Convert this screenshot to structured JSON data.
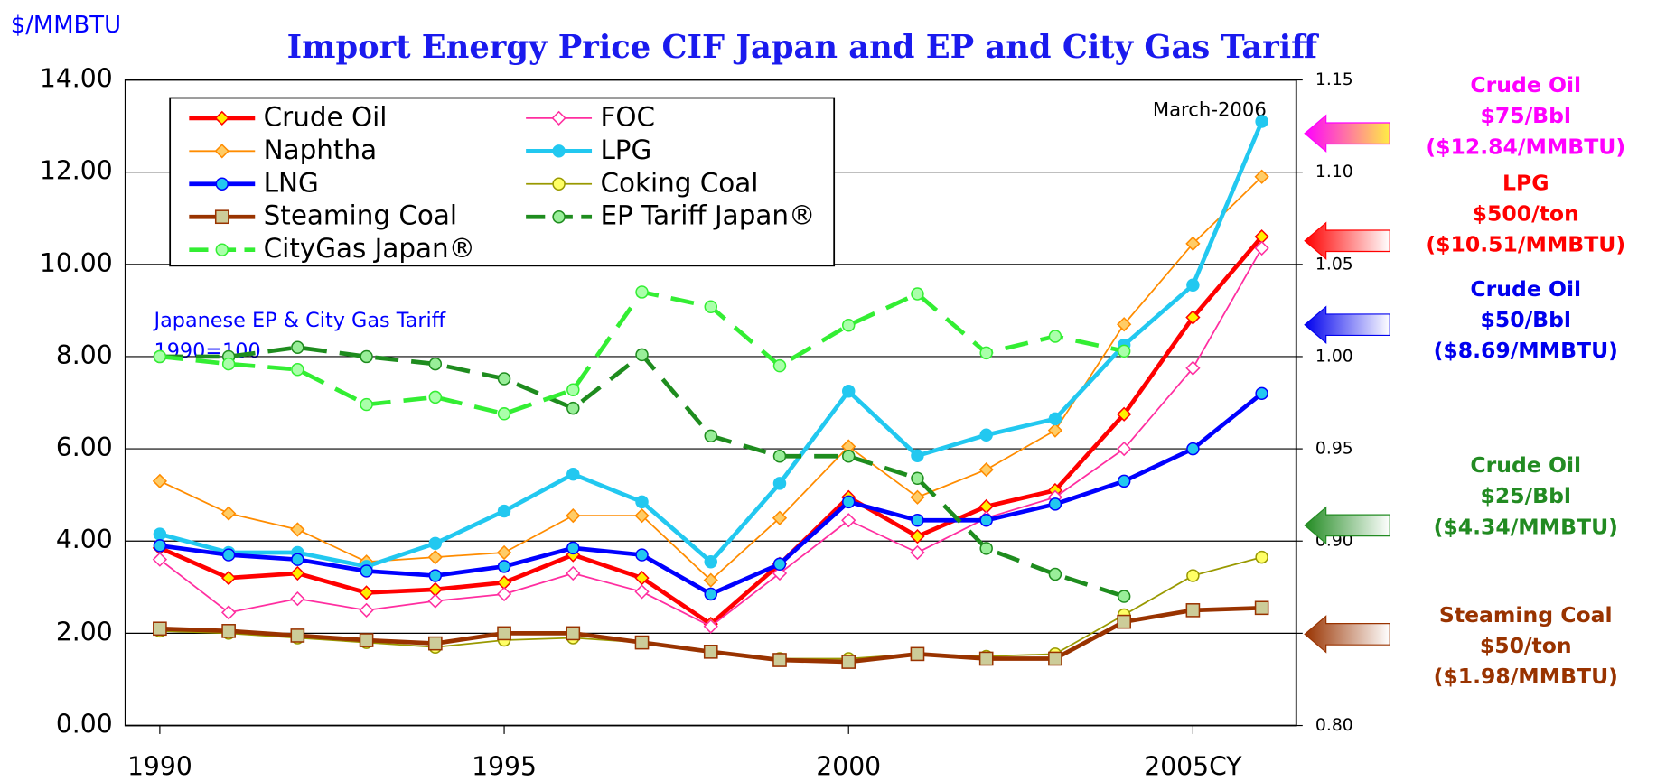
{
  "chart_data": {
    "type": "line",
    "title": "Import Energy Price CIF Japan and  EP and City Gas Tariff",
    "y_label": "$/MMBTU",
    "xlim": [
      1989.5,
      2006.5
    ],
    "xticks": [
      1990,
      1995,
      2000,
      {
        "value": 2005,
        "label": "2005CY"
      }
    ],
    "ylim": [
      0,
      14
    ],
    "yticks": [
      {
        "value": 0,
        "label": "0.00"
      },
      {
        "value": 2,
        "label": "2.00"
      },
      {
        "value": 4,
        "label": "4.00"
      },
      {
        "value": 6,
        "label": "6.00"
      },
      {
        "value": 8,
        "label": "8.00"
      },
      {
        "value": 10,
        "label": "10.00"
      },
      {
        "value": 12,
        "label": "12.00"
      },
      {
        "value": 14,
        "label": "14.00"
      }
    ],
    "y2lim": [
      0.8,
      1.15
    ],
    "y2ticks": [
      {
        "value": 0.8,
        "label": "0.80"
      },
      0.85,
      {
        "value": 0.9,
        "label": "0.90"
      },
      0.95,
      {
        "value": 1.0,
        "label": "1.00"
      },
      1.05,
      {
        "value": 1.1,
        "label": "1.10"
      },
      1.15
    ],
    "grid": true,
    "legend": "upper left",
    "x": [
      1990,
      1991,
      1992,
      1993,
      1994,
      1995,
      1996,
      1997,
      1998,
      1999,
      2000,
      2001,
      2002,
      2003,
      2004,
      2005,
      2006
    ],
    "series": [
      {
        "name": "Crude Oil",
        "color": "#ff0000",
        "marker": "diamond",
        "marker_fill": "#ffee00",
        "style": "thick",
        "values": [
          3.85,
          3.2,
          3.3,
          2.88,
          2.95,
          3.1,
          3.7,
          3.2,
          2.2,
          3.5,
          4.95,
          4.1,
          4.75,
          5.1,
          6.75,
          8.85,
          10.6
        ]
      },
      {
        "name": "FOC",
        "color": "#ff2ea0",
        "marker": "diamond",
        "marker_fill": "#ffffff",
        "style": "thin",
        "values": [
          3.6,
          2.45,
          2.75,
          2.5,
          2.7,
          2.85,
          3.3,
          2.9,
          2.15,
          3.3,
          4.45,
          3.75,
          4.5,
          4.95,
          6.0,
          7.75,
          10.35
        ]
      },
      {
        "name": "Naphtha",
        "color": "#ff8c00",
        "marker": "diamond",
        "marker_fill": "#ffcc66",
        "style": "thin",
        "values": [
          5.3,
          4.6,
          4.25,
          3.55,
          3.65,
          3.75,
          4.55,
          4.55,
          3.15,
          4.5,
          6.05,
          4.95,
          5.55,
          6.4,
          8.7,
          10.45,
          11.9
        ]
      },
      {
        "name": "LPG",
        "color": "#22c8f0",
        "marker": "circle",
        "marker_fill": "#22c8f0",
        "style": "thick",
        "values": [
          4.15,
          3.75,
          3.75,
          3.45,
          3.95,
          4.65,
          5.45,
          4.85,
          3.55,
          5.25,
          7.25,
          5.85,
          6.3,
          6.65,
          8.25,
          9.55,
          13.1
        ]
      },
      {
        "name": "LNG",
        "color": "#0000ff",
        "marker": "circle",
        "marker_fill": "#22c8f0",
        "style": "thick",
        "values": [
          3.9,
          3.7,
          3.6,
          3.35,
          3.25,
          3.45,
          3.85,
          3.7,
          2.85,
          3.5,
          4.85,
          4.45,
          4.45,
          4.8,
          5.3,
          6.0,
          7.2
        ]
      },
      {
        "name": "Coking Coal",
        "color": "#999900",
        "marker": "circle",
        "marker_fill": "#ffff66",
        "style": "thin",
        "values": [
          2.05,
          2.0,
          1.9,
          1.8,
          1.7,
          1.85,
          1.9,
          1.8,
          1.6,
          1.45,
          1.45,
          1.55,
          1.5,
          1.55,
          2.4,
          3.25,
          3.65
        ]
      },
      {
        "name": "Steaming Coal",
        "color": "#993300",
        "marker": "square",
        "marker_fill": "#cccc99",
        "style": "thick",
        "values": [
          2.1,
          2.05,
          1.95,
          1.85,
          1.78,
          2.0,
          2.0,
          1.8,
          1.6,
          1.42,
          1.38,
          1.55,
          1.45,
          1.45,
          2.25,
          2.5,
          2.55
        ]
      },
      {
        "name": "EP Tariff Japan®",
        "color": "#1e8c1e",
        "marker": "circle",
        "marker_fill": "#99ee99",
        "style": "dashed",
        "axis": "y2",
        "values": [
          1.0,
          1.0,
          1.005,
          1.0,
          0.996,
          0.988,
          0.972,
          1.001,
          0.957,
          0.946,
          0.946,
          0.934,
          0.896,
          0.882,
          0.87,
          null,
          null
        ]
      },
      {
        "name": "CityGas Japan®",
        "color": "#33ee33",
        "marker": "circle",
        "marker_fill": "#aaffaa",
        "style": "dashed",
        "axis": "y2",
        "values": [
          1.0,
          0.996,
          0.993,
          0.974,
          0.978,
          0.969,
          0.982,
          1.035,
          1.027,
          0.995,
          1.017,
          1.034,
          1.002,
          1.011,
          1.003,
          null,
          null
        ]
      }
    ],
    "annotations": [
      {
        "text": "March-2006"
      },
      {
        "text": "Japanese EP & City Gas Tariff"
      },
      {
        "text": "1990=100"
      }
    ],
    "reference_arrows": [
      {
        "value": 12.84,
        "color": "#ff00ff",
        "lines": [
          "Crude Oil",
          "$75/Bbl",
          "($12.84/MMBTU)"
        ]
      },
      {
        "value": 10.51,
        "color": "#ff0000",
        "lines": [
          "LPG",
          "$500/ton",
          "($10.51/MMBTU)"
        ]
      },
      {
        "value": 8.69,
        "color": "#0000ee",
        "lines": [
          "Crude Oil",
          "$50/Bbl",
          "($8.69/MMBTU)"
        ]
      },
      {
        "value": 4.34,
        "color": "#228b22",
        "lines": [
          "Crude Oil",
          "$25/Bbl",
          "($4.34/MMBTU)"
        ]
      },
      {
        "value": 1.98,
        "color": "#993300",
        "lines": [
          "Steaming Coal",
          "$50/ton",
          "($1.98/MMBTU)"
        ]
      }
    ]
  }
}
